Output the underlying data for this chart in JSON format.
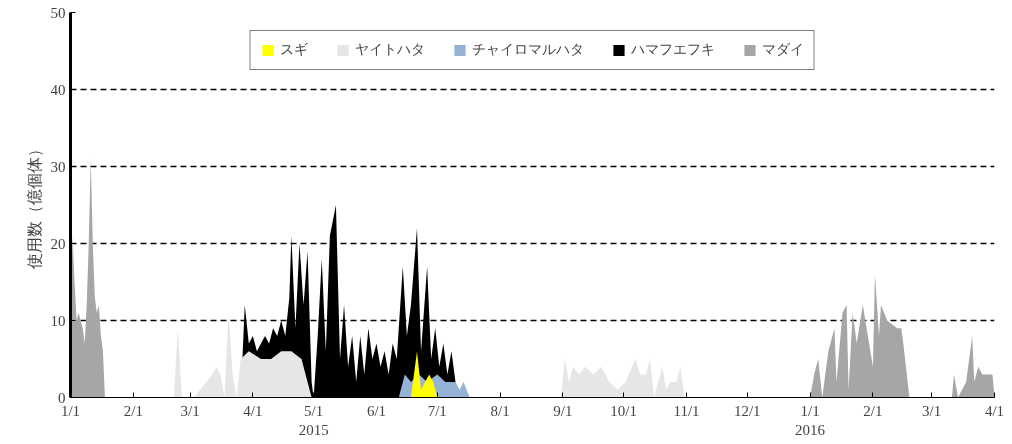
{
  "chart_data": {
    "type": "area",
    "ylabel": "使用数（億個体）",
    "ylim": [
      0,
      50
    ],
    "yticks": [
      0,
      10,
      20,
      30,
      40,
      50
    ],
    "xlim": [
      "2015-01-01",
      "2016-04-01"
    ],
    "xticks": [
      {
        "value": "2015-01-01",
        "label": "1/1"
      },
      {
        "value": "2015-02-01",
        "label": "2/1"
      },
      {
        "value": "2015-03-01",
        "label": "3/1"
      },
      {
        "value": "2015-04-01",
        "label": "4/1"
      },
      {
        "value": "2015-05-01",
        "label": "5/1\n2015"
      },
      {
        "value": "2015-06-01",
        "label": "6/1"
      },
      {
        "value": "2015-07-01",
        "label": "7/1"
      },
      {
        "value": "2015-08-01",
        "label": "8/1"
      },
      {
        "value": "2015-09-01",
        "label": "9/1"
      },
      {
        "value": "2015-10-01",
        "label": "10/1"
      },
      {
        "value": "2015-11-01",
        "label": "11/1"
      },
      {
        "value": "2015-12-01",
        "label": "12/1"
      },
      {
        "value": "2016-01-01",
        "label": "1/1\n2016"
      },
      {
        "value": "2016-02-01",
        "label": "2/1"
      },
      {
        "value": "2016-03-01",
        "label": "3/1"
      },
      {
        "value": "2016-04-01",
        "label": "4/1"
      }
    ],
    "grid": "y",
    "legend": "top",
    "series": [
      {
        "name": "スギ",
        "color": "#ffff00",
        "x": [
          "2015-06-18",
          "2015-06-21",
          "2015-06-23",
          "2015-06-25",
          "2015-06-27",
          "2015-06-29",
          "2015-07-01"
        ],
        "values": [
          0,
          6,
          1,
          2,
          3,
          2,
          0
        ]
      },
      {
        "name": "ヤイトハタ",
        "color": "#e6e6e6",
        "x": [
          "2015-02-21",
          "2015-02-23",
          "2015-02-25",
          "2015-03-03",
          "2015-03-06",
          "2015-03-09",
          "2015-03-12",
          "2015-03-14",
          "2015-03-16",
          "2015-03-18",
          "2015-03-20",
          "2015-03-22",
          "2015-03-24",
          "2015-03-26",
          "2015-03-30",
          "2015-04-05",
          "2015-04-10",
          "2015-04-15",
          "2015-04-20",
          "2015-04-25",
          "2015-04-30",
          "2015-08-31",
          "2015-09-02",
          "2015-09-04",
          "2015-09-06",
          "2015-09-09",
          "2015-09-12",
          "2015-09-16",
          "2015-09-20",
          "2015-09-24",
          "2015-09-28",
          "2015-10-02",
          "2015-10-05",
          "2015-10-07",
          "2015-10-09",
          "2015-10-12",
          "2015-10-14",
          "2015-10-16",
          "2015-10-18",
          "2015-10-20",
          "2015-10-22",
          "2015-10-24",
          "2015-10-27",
          "2015-10-29",
          "2015-10-31"
        ],
        "values": [
          0,
          9,
          0,
          0,
          1,
          2,
          3,
          4,
          3,
          0,
          11,
          3,
          0,
          5,
          6,
          5,
          5,
          6,
          6,
          5,
          0,
          0,
          5,
          2,
          4,
          3,
          4,
          3,
          4,
          2,
          1,
          2,
          4,
          5,
          3,
          3,
          5,
          0,
          2,
          4,
          1,
          2,
          2,
          4,
          0
        ]
      },
      {
        "name": "チャイロマルハタ",
        "color": "#95b3d7",
        "x": [
          "2015-06-12",
          "2015-06-15",
          "2015-06-18",
          "2015-06-22",
          "2015-06-26",
          "2015-07-01",
          "2015-07-05",
          "2015-07-10",
          "2015-07-12",
          "2015-07-14",
          "2015-07-17"
        ],
        "values": [
          0,
          3,
          2,
          3,
          2,
          3,
          2,
          2,
          1,
          2,
          0
        ]
      },
      {
        "name": "ハマフエフキ",
        "color": "#000000",
        "x": [
          "2015-03-26",
          "2015-03-28",
          "2015-03-30",
          "2015-04-01",
          "2015-04-03",
          "2015-04-05",
          "2015-04-07",
          "2015-04-09",
          "2015-04-11",
          "2015-04-13",
          "2015-04-15",
          "2015-04-17",
          "2015-04-19",
          "2015-04-20",
          "2015-04-22",
          "2015-04-24",
          "2015-04-26",
          "2015-04-28",
          "2015-04-30",
          "2015-05-01",
          "2015-05-03",
          "2015-05-05",
          "2015-05-07",
          "2015-05-09",
          "2015-05-12",
          "2015-05-14",
          "2015-05-16",
          "2015-05-18",
          "2015-05-20",
          "2015-05-22",
          "2015-05-24",
          "2015-05-26",
          "2015-05-28",
          "2015-05-30",
          "2015-06-01",
          "2015-06-03",
          "2015-06-05",
          "2015-06-07",
          "2015-06-09",
          "2015-06-11",
          "2015-06-14",
          "2015-06-16",
          "2015-06-18",
          "2015-06-21",
          "2015-06-23",
          "2015-06-26",
          "2015-06-28",
          "2015-06-30",
          "2015-07-02",
          "2015-07-04",
          "2015-07-06",
          "2015-07-08",
          "2015-07-10",
          "2015-07-12"
        ],
        "values": [
          0,
          12,
          7,
          8,
          6,
          7,
          8,
          7,
          9,
          8,
          10,
          8,
          13,
          21,
          9,
          20,
          12,
          19,
          2,
          0,
          8,
          18,
          6,
          21,
          25,
          5,
          12,
          4,
          8,
          2,
          8,
          3,
          9,
          5,
          7,
          4,
          6,
          3,
          7,
          5,
          17,
          8,
          12,
          22,
          6,
          17,
          5,
          9,
          4,
          7,
          3,
          6,
          2,
          0
        ]
      },
      {
        "name": "マダイ",
        "color": "#a6a6a6",
        "x": [
          "2015-01-01",
          "2015-01-02",
          "2015-01-03",
          "2015-01-04",
          "2015-01-05",
          "2015-01-06",
          "2015-01-07",
          "2015-01-08",
          "2015-01-09",
          "2015-01-10",
          "2015-01-11",
          "2015-01-12",
          "2015-01-13",
          "2015-01-14",
          "2015-01-15",
          "2015-01-16",
          "2015-01-17",
          "2015-01-18",
          "2016-01-01",
          "2016-01-03",
          "2016-01-05",
          "2016-01-07",
          "2016-01-10",
          "2016-01-13",
          "2016-01-14",
          "2016-01-17",
          "2016-01-19",
          "2016-01-20",
          "2016-01-22",
          "2016-01-24",
          "2016-01-27",
          "2016-02-01",
          "2016-02-02",
          "2016-02-04",
          "2016-02-05",
          "2016-02-08",
          "2016-02-13",
          "2016-02-15",
          "2016-02-16",
          "2016-02-19",
          "2016-03-11",
          "2016-03-12",
          "2016-03-14",
          "2016-03-18",
          "2016-03-21",
          "2016-03-22",
          "2016-03-24",
          "2016-03-26",
          "2016-03-31",
          "2016-04-01"
        ],
        "values": [
          10,
          21,
          15,
          10,
          11,
          10,
          9,
          7,
          12,
          20,
          31,
          20,
          13,
          11,
          12,
          8,
          6,
          0,
          0,
          3,
          5,
          0,
          6,
          9,
          2,
          11,
          12,
          1,
          11,
          7,
          12,
          4,
          16,
          8,
          12,
          10,
          9,
          9,
          7,
          0,
          0,
          3,
          0,
          2,
          8,
          2,
          4,
          3,
          3,
          0
        ]
      }
    ]
  }
}
